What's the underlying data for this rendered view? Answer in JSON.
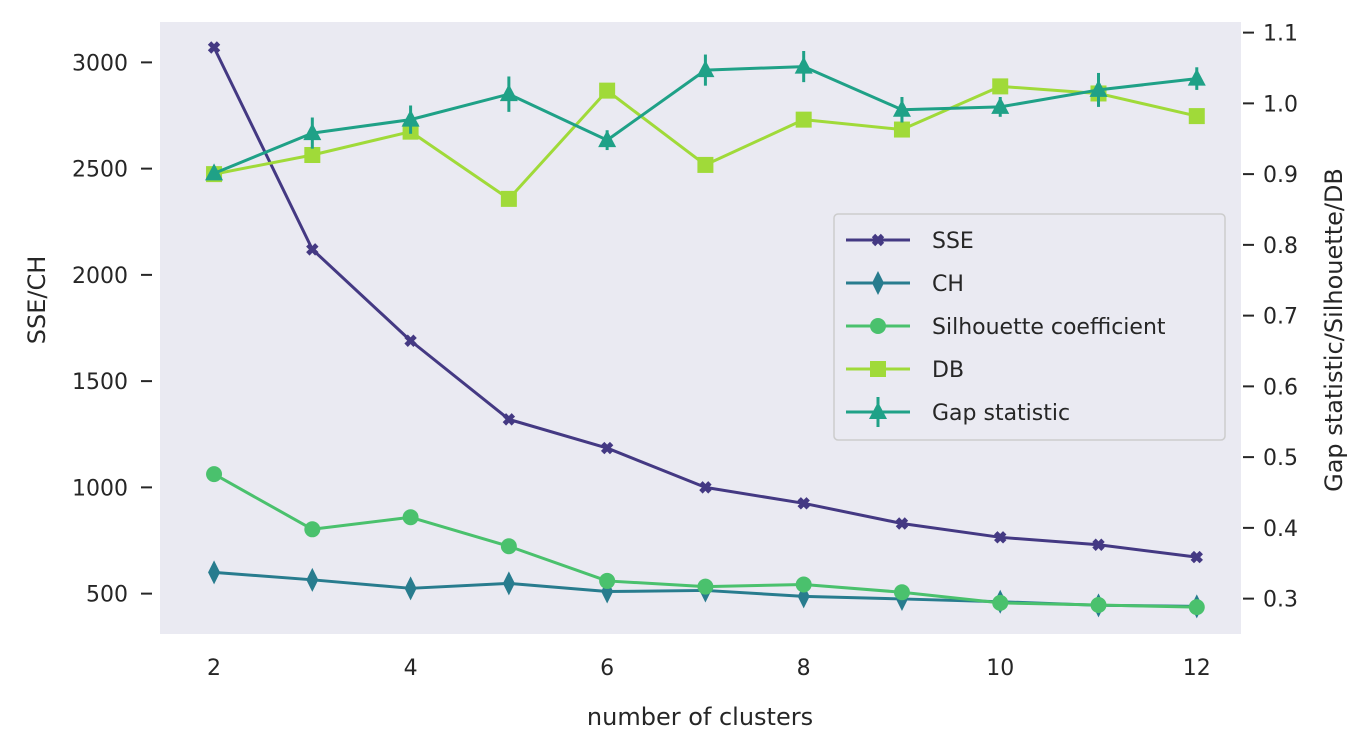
{
  "chart_data": {
    "type": "line",
    "title": "",
    "xlabel": "number of clusters",
    "ylabel_left": "SSE/CH",
    "ylabel_right": "Gap statistic/Silhouette/DB",
    "x": [
      2,
      3,
      4,
      5,
      6,
      7,
      8,
      9,
      10,
      11,
      12
    ],
    "xticks": [
      "2",
      "4",
      "6",
      "8",
      "10",
      "12"
    ],
    "xlim": [
      1.45,
      12.45
    ],
    "ylim_left": [
      310,
      3190
    ],
    "yticks_left": [
      "500",
      "1000",
      "1500",
      "2000",
      "2500",
      "3000"
    ],
    "ylim_right": [
      0.25,
      1.115
    ],
    "yticks_right": [
      "0.3",
      "0.4",
      "0.5",
      "0.6",
      "0.7",
      "0.8",
      "0.9",
      "1.0",
      "1.1"
    ],
    "grid": false,
    "background": "#eaeaf2",
    "legend_position": "center-right",
    "series": [
      {
        "name": "SSE",
        "axis": "left",
        "marker": "X",
        "color": "#443983",
        "values": [
          3070,
          2120,
          1690,
          1320,
          1185,
          1000,
          925,
          830,
          765,
          730,
          672
        ]
      },
      {
        "name": "CH",
        "axis": "left",
        "marker": "diamond",
        "color": "#287c8e",
        "values": [
          600,
          565,
          525,
          548,
          510,
          515,
          487,
          475,
          462,
          445,
          440
        ]
      },
      {
        "name": "Silhouette coefficient",
        "axis": "right",
        "marker": "circle",
        "color": "#4ac16d",
        "values": [
          0.476,
          0.398,
          0.415,
          0.374,
          0.325,
          0.317,
          0.32,
          0.309,
          0.294,
          0.291,
          0.288
        ]
      },
      {
        "name": "DB",
        "axis": "right",
        "marker": "square",
        "color": "#a0da39",
        "values": [
          0.9,
          0.927,
          0.96,
          0.865,
          1.018,
          0.913,
          0.977,
          0.963,
          1.024,
          1.014,
          0.982
        ]
      },
      {
        "name": "Gap statistic",
        "axis": "right",
        "marker": "triangle",
        "color": "#1fa187",
        "values": [
          0.901,
          0.958,
          0.977,
          1.013,
          0.948,
          1.047,
          1.052,
          0.991,
          0.995,
          1.019,
          1.035
        ],
        "errors": [
          0.008,
          0.022,
          0.02,
          0.025,
          0.014,
          0.022,
          0.022,
          0.018,
          0.014,
          0.024,
          0.016
        ]
      }
    ]
  }
}
